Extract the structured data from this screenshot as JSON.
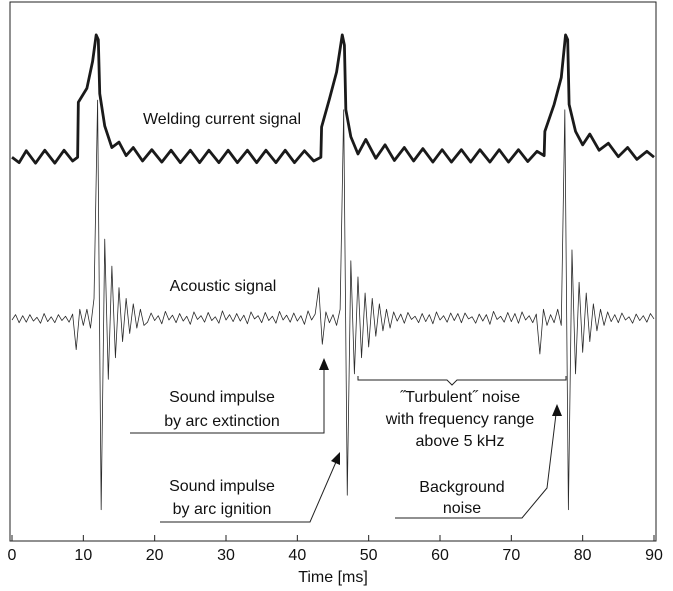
{
  "chart_data": {
    "type": "line",
    "x_label": "Time [ms]",
    "xlim": [
      0,
      90
    ],
    "xticks": [
      0,
      10,
      20,
      30,
      40,
      50,
      60,
      70,
      80,
      90
    ],
    "ylim": [
      0,
      100
    ],
    "series": [
      {
        "name": "Welding current signal",
        "color": "#1a1a1a",
        "x": [
          0,
          1,
          2,
          3.3,
          4.6,
          6,
          7.3,
          8.5,
          9.2,
          9.3,
          10.5,
          11.3,
          11.8,
          12.1,
          12.3,
          13,
          14,
          15,
          16,
          17,
          18.3,
          19.6,
          21,
          22.3,
          23.6,
          25,
          26.3,
          27.6,
          29,
          30.3,
          31.6,
          33,
          34.3,
          35.6,
          37,
          38.3,
          39.6,
          41,
          42.3,
          43.3,
          43.4,
          44.5,
          45.5,
          46.3,
          46.6,
          46.8,
          47.5,
          48.5,
          49.6,
          51,
          52.3,
          53.6,
          55,
          56.3,
          57.6,
          59,
          60.3,
          61.6,
          63,
          64.3,
          65.6,
          67,
          68.3,
          69.6,
          71,
          72.3,
          73.6,
          74.6,
          74.7,
          76,
          77,
          77.6,
          77.9,
          78.1,
          79,
          80,
          81,
          82.3,
          83.6,
          85,
          86.3,
          87.6,
          89,
          90
        ],
        "values": [
          71.2,
          70.2,
          72.4,
          70.1,
          72.5,
          70.1,
          72.5,
          70.5,
          71.2,
          81.4,
          84,
          89,
          93.9,
          93,
          83,
          77,
          73,
          74,
          71.5,
          73,
          70.5,
          72.6,
          70.3,
          72.5,
          70.2,
          72.5,
          70.2,
          72.5,
          70.2,
          72.5,
          70.2,
          72.5,
          70.2,
          72.5,
          70.2,
          72.5,
          70.2,
          72.4,
          70.5,
          71.2,
          76.8,
          82,
          87,
          93.9,
          92,
          80,
          75,
          71.8,
          74.5,
          71,
          73.5,
          70.6,
          73,
          70.5,
          72.8,
          70.3,
          72.6,
          70.3,
          72.6,
          70.3,
          72.6,
          70.3,
          72.6,
          70.3,
          72.6,
          70.4,
          72.3,
          71.5,
          76,
          81,
          86,
          93.9,
          93,
          81,
          76,
          73.5,
          75.5,
          72.5,
          73.8,
          71.3,
          73,
          70.8,
          72.3,
          71.2
        ]
      },
      {
        "name": "Acoustic signal",
        "color": "#2a2a2a",
        "x": [
          0,
          0.5,
          1,
          1.5,
          2,
          2.5,
          3,
          3.5,
          4,
          4.5,
          5,
          5.5,
          6,
          6.5,
          7,
          7.5,
          8,
          8.5,
          9,
          9.5,
          10,
          10.5,
          11,
          11.5,
          12,
          12.5,
          13,
          13.5,
          14,
          14.5,
          15,
          15.5,
          16,
          16.5,
          17,
          17.5,
          18,
          18.5,
          19,
          19.5,
          20,
          20.5,
          21,
          21.5,
          22,
          22.5,
          23,
          23.5,
          24,
          24.5,
          25,
          25.5,
          26,
          26.5,
          27,
          27.5,
          28,
          28.5,
          29,
          29.5,
          30,
          30.5,
          31,
          31.5,
          32,
          32.5,
          33,
          33.5,
          34,
          34.5,
          35,
          35.5,
          36,
          36.5,
          37,
          37.5,
          38,
          38.5,
          39,
          39.5,
          40,
          40.5,
          41,
          41.5,
          42,
          42.5,
          43,
          43.5,
          44,
          44.5,
          45,
          45.5,
          46,
          46.5,
          47,
          47.5,
          48,
          48.5,
          49,
          49.5,
          50,
          50.5,
          51,
          51.5,
          52,
          52.5,
          53,
          53.5,
          54,
          54.5,
          55,
          55.5,
          56,
          56.5,
          57,
          57.5,
          58,
          58.5,
          59,
          59.5,
          60,
          60.5,
          61,
          61.5,
          62,
          62.5,
          63,
          63.5,
          64,
          64.5,
          65,
          65.5,
          66,
          66.5,
          67,
          67.5,
          68,
          68.5,
          69,
          69.5,
          70,
          70.5,
          71,
          71.5,
          72,
          72.5,
          73,
          73.5,
          74,
          74.5,
          75,
          75.5,
          76,
          76.5,
          77,
          77.5,
          78,
          78.5,
          79,
          79.5,
          80,
          80.5,
          81,
          81.5,
          82,
          82.5,
          83,
          83.5,
          84,
          84.5,
          85,
          85.5,
          86,
          86.5,
          87,
          87.5,
          88,
          88.5,
          89,
          89.5,
          90
        ],
        "values": [
          41,
          42,
          40.5,
          41.8,
          40.6,
          42,
          40.8,
          41.5,
          40.4,
          42.2,
          40.7,
          41.6,
          40.5,
          42,
          40.9,
          41.7,
          40.6,
          42.1,
          35.5,
          43,
          40,
          43,
          39.5,
          45,
          81.8,
          5.8,
          56,
          30,
          51,
          34,
          47,
          37,
          45,
          38.5,
          44,
          39.5,
          43,
          40,
          40.6,
          42.3,
          40.9,
          41.8,
          40.3,
          42.6,
          41,
          41.9,
          40.5,
          42.2,
          40.8,
          41.7,
          40.2,
          42.5,
          41.1,
          41.8,
          40.6,
          42.4,
          40.9,
          41.6,
          40.4,
          42.7,
          41,
          42,
          40.7,
          42.2,
          40.8,
          41.9,
          40.3,
          42.5,
          41.2,
          41.8,
          40.5,
          42.4,
          40.9,
          41.7,
          40.4,
          42.6,
          41,
          41.9,
          40.6,
          42.3,
          40.8,
          41.8,
          40.2,
          42.7,
          41,
          42.1,
          47,
          36.5,
          42.5,
          40.5,
          42,
          40,
          43,
          80,
          8.5,
          52,
          31,
          49,
          34,
          46,
          36,
          45,
          38,
          44,
          39,
          43,
          39.5,
          42.5,
          40.8,
          42.1,
          40.4,
          42.4,
          41.1,
          41.7,
          40.5,
          42.2,
          40.7,
          42,
          40.3,
          42.5,
          41,
          41.8,
          40.6,
          42.3,
          40.9,
          42.2,
          40.5,
          42.3,
          41.2,
          41.6,
          40.4,
          42.1,
          40.8,
          42,
          40.2,
          42.6,
          41.1,
          41.7,
          40.6,
          42.4,
          40.7,
          42.2,
          40.4,
          42.5,
          41,
          41.8,
          40.5,
          42.1,
          34.7,
          43,
          40,
          42,
          40.5,
          43,
          40,
          80,
          5.8,
          54,
          31,
          48,
          35,
          46,
          37,
          44,
          39,
          43,
          40,
          42.5,
          40.7,
          42,
          40.5,
          42.3,
          41,
          41.6,
          40.4,
          42.1,
          40.9,
          41.8,
          40.6,
          42.2,
          41.2
        ]
      }
    ],
    "annotations": [
      [
        "Welding current signal"
      ],
      [
        "Acoustic signal"
      ],
      [
        "Sound impulse",
        "by arc extinction"
      ],
      [
        "Sound impulse",
        "by arc ignition"
      ],
      [
        "˝Turbulent˝ noise",
        "with frequency range",
        "above 5 kHz"
      ],
      [
        "Background",
        "noise"
      ]
    ]
  }
}
